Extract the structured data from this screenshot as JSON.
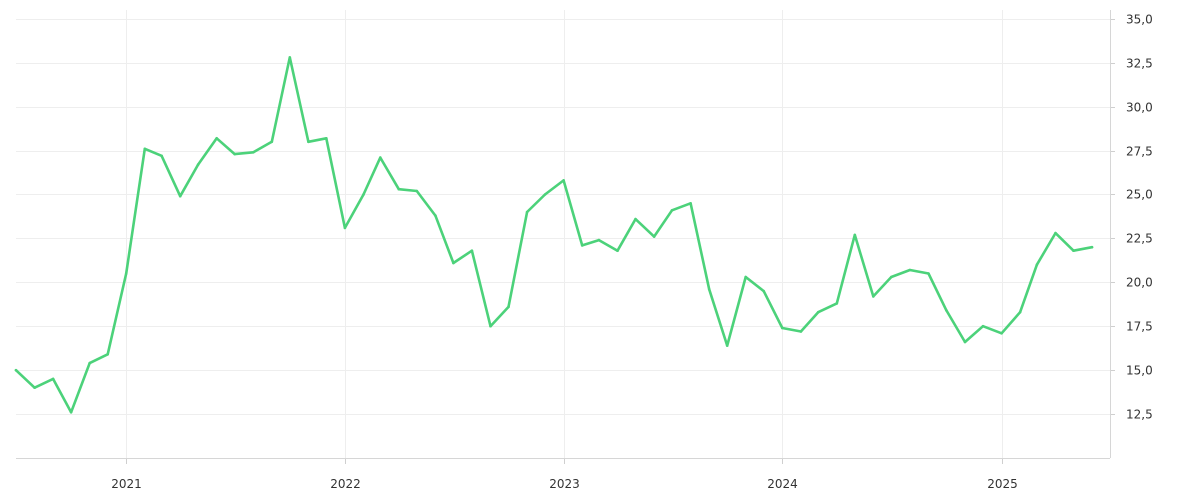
{
  "chart_data": {
    "type": "line",
    "title": "",
    "xlabel": "",
    "ylabel": "",
    "grid": true,
    "legend": "none",
    "y_axis_side": "right",
    "ylim": [
      10.0,
      35.5
    ],
    "xlim": [
      "2020-07-01",
      "2025-07-01"
    ],
    "y_ticks": [
      12.5,
      15.0,
      17.5,
      20.0,
      22.5,
      25.0,
      27.5,
      30.0,
      32.5,
      35.0
    ],
    "y_tick_labels": [
      "12,5",
      "15,0",
      "17,5",
      "20,0",
      "22,5",
      "25,0",
      "27,5",
      "30,0",
      "32,5",
      "35,0"
    ],
    "x_ticks": [
      "2021-01-01",
      "2022-01-01",
      "2023-01-01",
      "2024-01-01",
      "2025-01-01"
    ],
    "x_tick_labels": [
      "2021",
      "2022",
      "2023",
      "2024",
      "2025"
    ],
    "series": [
      {
        "color": "#4cd27a",
        "x": [
          "2020-07-01",
          "2020-08-01",
          "2020-09-01",
          "2020-10-01",
          "2020-11-01",
          "2020-12-01",
          "2021-01-01",
          "2021-02-01",
          "2021-03-01",
          "2021-04-01",
          "2021-05-01",
          "2021-06-01",
          "2021-07-01",
          "2021-08-01",
          "2021-09-01",
          "2021-10-01",
          "2021-11-01",
          "2021-12-01",
          "2022-01-01",
          "2022-02-01",
          "2022-03-01",
          "2022-04-01",
          "2022-05-01",
          "2022-06-01",
          "2022-07-01",
          "2022-08-01",
          "2022-09-01",
          "2022-10-01",
          "2022-11-01",
          "2022-12-01",
          "2023-01-01",
          "2023-02-01",
          "2023-03-01",
          "2023-04-01",
          "2023-05-01",
          "2023-06-01",
          "2023-07-01",
          "2023-08-01",
          "2023-09-01",
          "2023-10-01",
          "2023-11-01",
          "2023-12-01",
          "2024-01-01",
          "2024-02-01",
          "2024-03-01",
          "2024-04-01",
          "2024-05-01",
          "2024-06-01",
          "2024-07-01",
          "2024-08-01",
          "2024-09-01",
          "2024-10-01",
          "2024-11-01",
          "2024-12-01",
          "2025-01-01",
          "2025-02-01",
          "2025-03-01",
          "2025-04-01",
          "2025-05-01",
          "2025-06-01"
        ],
        "values": [
          15.0,
          14.0,
          14.5,
          12.6,
          15.4,
          15.9,
          20.5,
          27.6,
          27.2,
          24.9,
          26.7,
          28.2,
          27.3,
          27.4,
          28.0,
          32.8,
          28.0,
          28.2,
          23.1,
          25.0,
          27.1,
          25.3,
          25.2,
          23.8,
          21.1,
          21.8,
          17.5,
          18.6,
          24.0,
          25.0,
          25.8,
          22.1,
          22.4,
          21.8,
          23.6,
          22.6,
          24.1,
          24.5,
          19.6,
          16.4,
          20.3,
          19.5,
          17.4,
          17.2,
          18.3,
          18.8,
          22.7,
          19.2,
          20.3,
          20.7,
          20.5,
          18.4,
          16.6,
          17.5,
          17.1,
          18.3,
          21.0,
          22.8,
          21.8,
          22.0
        ]
      }
    ]
  }
}
